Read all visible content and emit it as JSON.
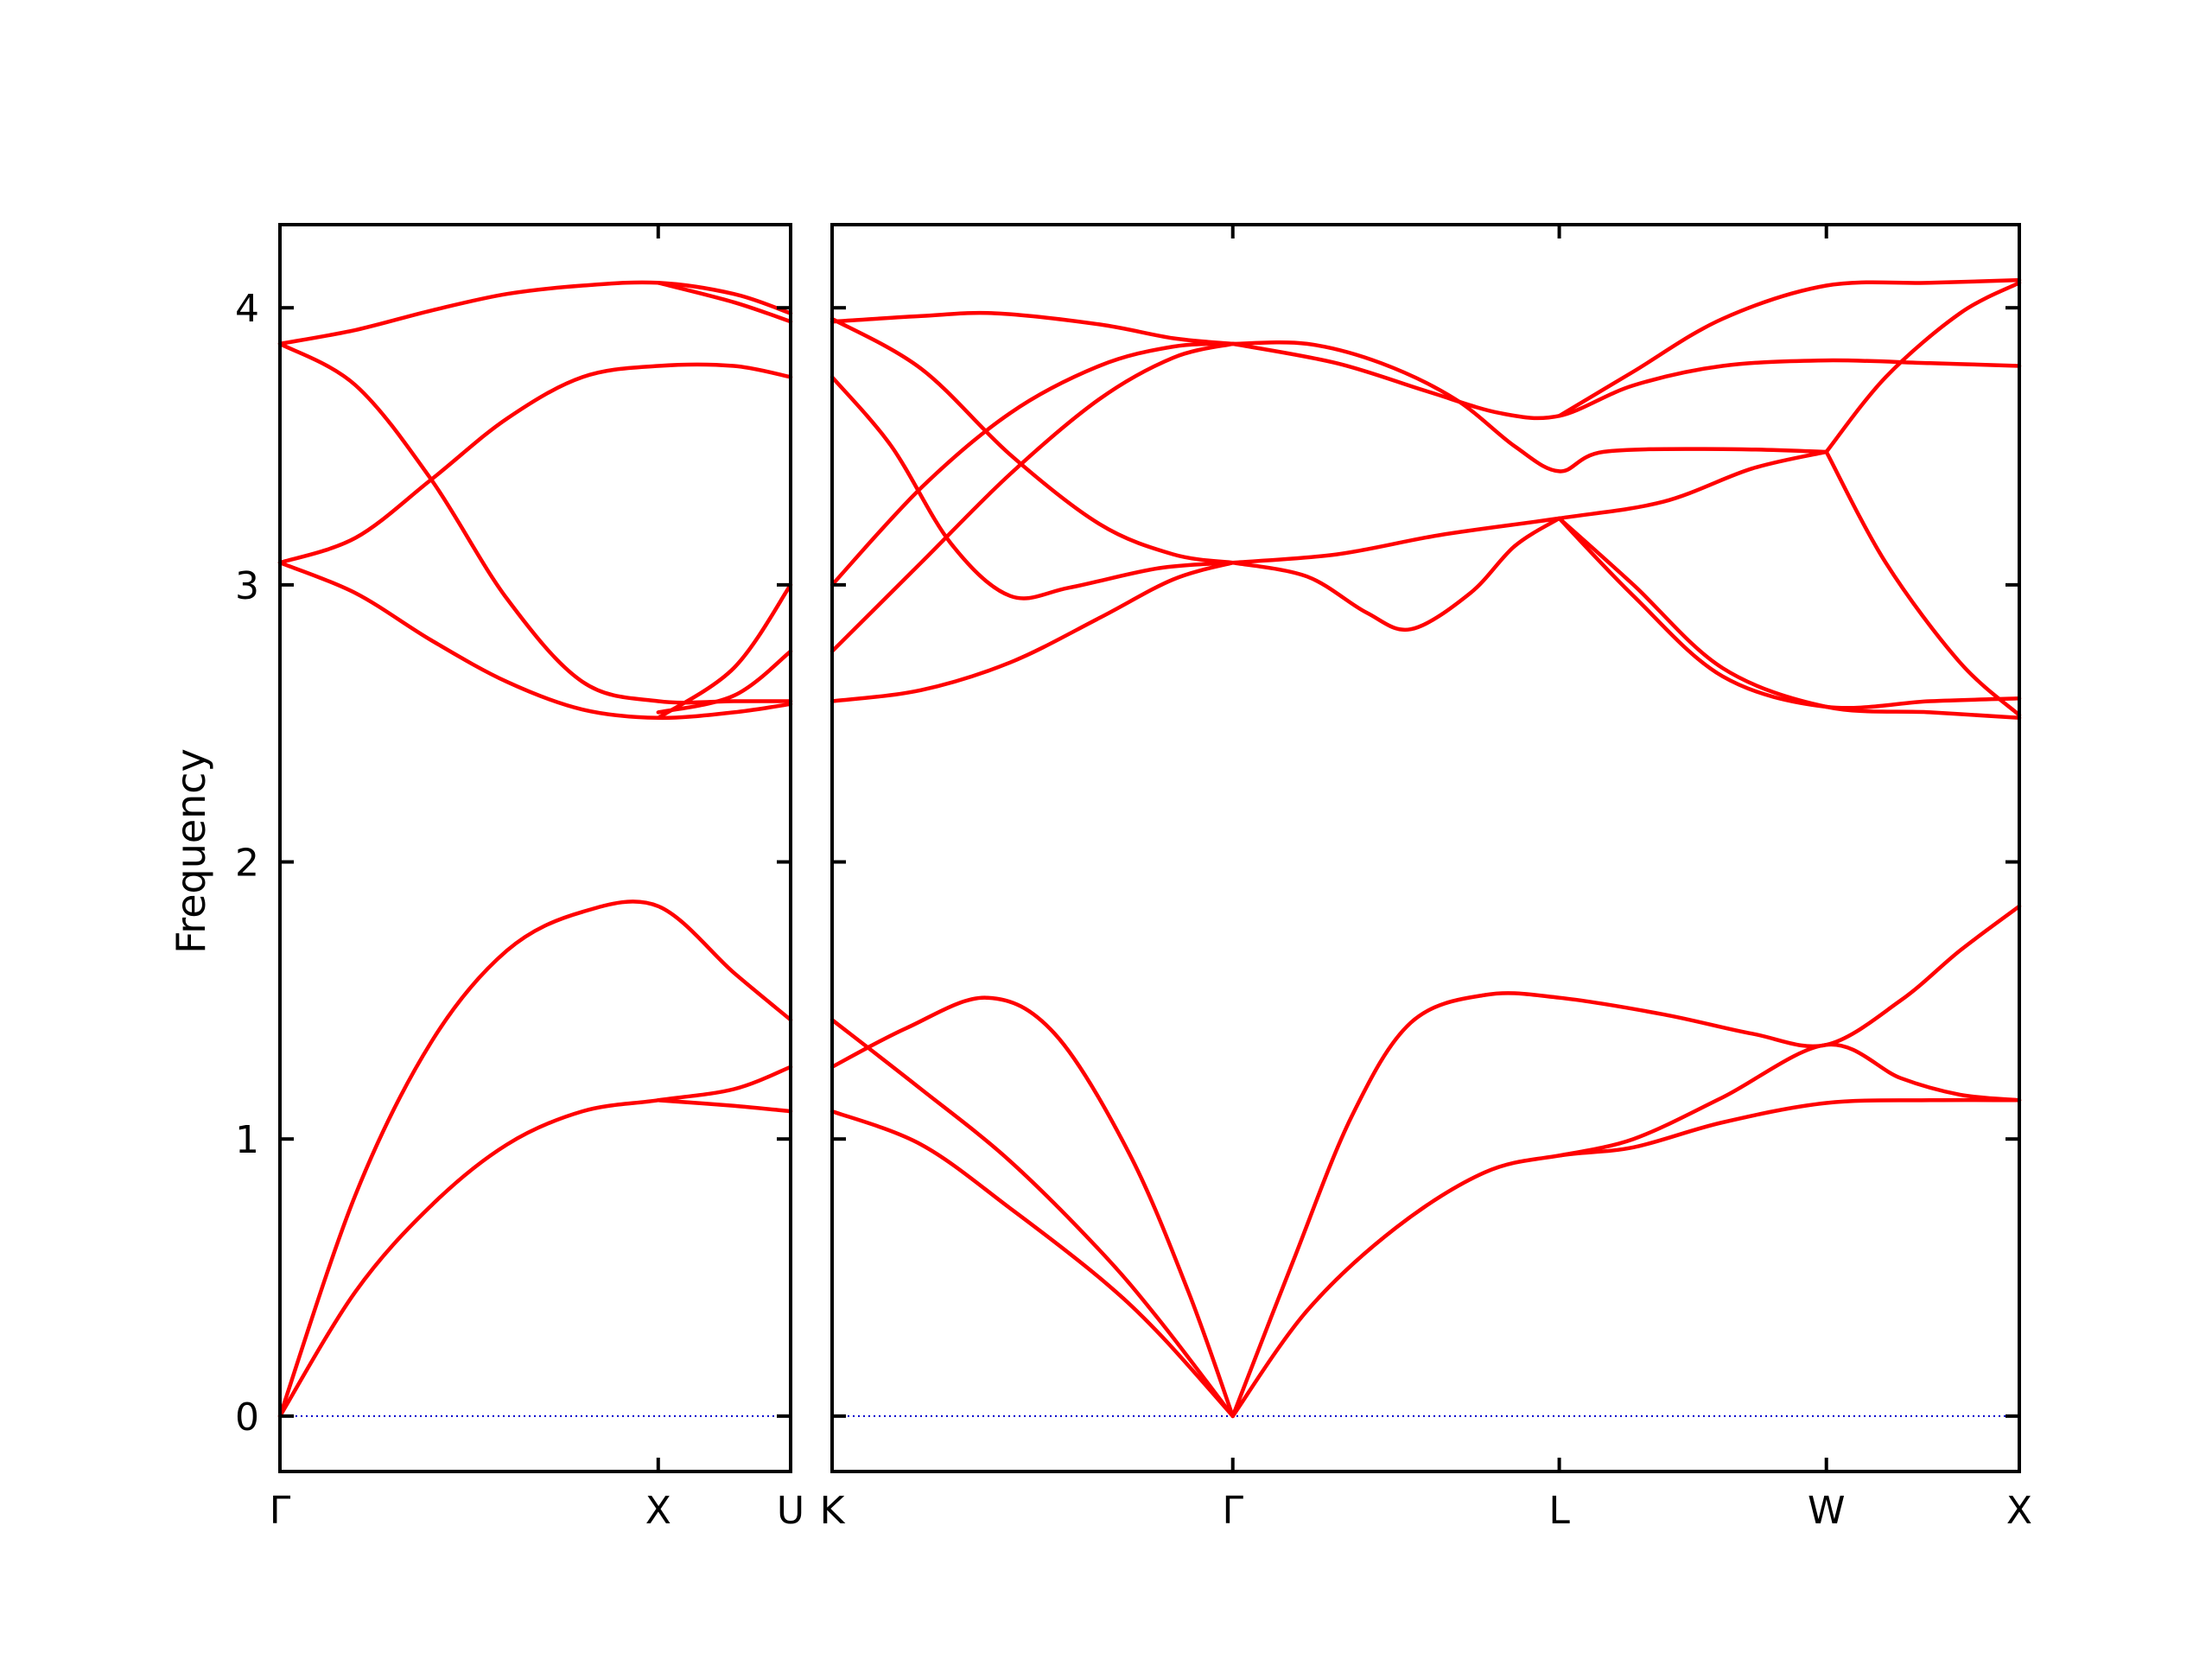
{
  "chart_data": {
    "type": "line",
    "title": "",
    "ylabel": "Frequency",
    "xlabel": "",
    "ylim": [
      -0.2,
      4.3
    ],
    "yticks": [
      0,
      1,
      2,
      3,
      4
    ],
    "colors": {
      "band": "#ff0000",
      "zero_line": "#0000cc",
      "axes": "#000000"
    },
    "panels": [
      {
        "name": "Γ–X–U",
        "xlim": [
          0,
          1.35
        ],
        "ticks": [
          {
            "x": 0,
            "label": "Γ"
          },
          {
            "x": 1.0,
            "label": "X"
          },
          {
            "x": 1.35,
            "label": "U"
          }
        ],
        "zero_line": true,
        "series": [
          {
            "values": [
              [
                0,
                0
              ],
              [
                0.2,
                0.45
              ],
              [
                0.4,
                0.76
              ],
              [
                0.6,
                0.98
              ],
              [
                0.8,
                1.1
              ],
              [
                1.0,
                1.14
              ],
              [
                1.2,
                1.18
              ],
              [
                1.35,
                1.26
              ]
            ]
          },
          {
            "values": [
              [
                0,
                0
              ],
              [
                0.2,
                0.8
              ],
              [
                0.4,
                1.35
              ],
              [
                0.6,
                1.68
              ],
              [
                0.8,
                1.82
              ],
              [
                1.0,
                1.84
              ],
              [
                1.2,
                1.6
              ],
              [
                1.35,
                1.43
              ]
            ]
          },
          {
            "values": [
              [
                0,
                1.14
              ],
              [
                0,
                1.14
              ]
            ],
            "skip": true
          },
          {
            "values": [
              [
                1.0,
                1.14
              ],
              [
                1.2,
                1.12
              ],
              [
                1.35,
                1.1
              ]
            ]
          },
          {
            "values": [
              [
                0,
                3.08
              ],
              [
                0.2,
                2.97
              ],
              [
                0.4,
                2.8
              ],
              [
                0.6,
                2.65
              ],
              [
                0.8,
                2.55
              ],
              [
                1.0,
                2.52
              ],
              [
                1.2,
                2.54
              ],
              [
                1.35,
                2.57
              ]
            ]
          },
          {
            "values": [
              [
                0,
                3.08
              ],
              [
                0.2,
                3.17
              ],
              [
                0.4,
                3.38
              ],
              [
                0.6,
                3.6
              ],
              [
                0.8,
                3.75
              ],
              [
                1.0,
                3.79
              ],
              [
                1.2,
                3.79
              ],
              [
                1.35,
                3.75
              ]
            ]
          },
          {
            "values": [
              [
                0,
                3.87
              ],
              [
                0.2,
                3.72
              ],
              [
                0.4,
                3.38
              ],
              [
                0.6,
                2.95
              ],
              [
                0.8,
                2.65
              ],
              [
                1.0,
                2.58
              ],
              [
                1.2,
                2.58
              ],
              [
                1.35,
                2.58
              ]
            ]
          },
          {
            "values": [
              [
                0,
                3.87
              ],
              [
                0.2,
                3.92
              ],
              [
                0.4,
                3.99
              ],
              [
                0.6,
                4.05
              ],
              [
                0.8,
                4.08
              ],
              [
                1.0,
                4.09
              ],
              [
                1.2,
                4.05
              ],
              [
                1.35,
                3.98
              ]
            ]
          },
          {
            "values": [
              [
                1.0,
                2.52
              ],
              [
                1.2,
                2.7
              ],
              [
                1.35,
                3.0
              ]
            ]
          },
          {
            "values": [
              [
                1.0,
                2.54
              ],
              [
                1.2,
                2.6
              ],
              [
                1.35,
                2.76
              ]
            ]
          },
          {
            "values": [
              [
                1.0,
                4.09
              ],
              [
                1.2,
                4.02
              ],
              [
                1.35,
                3.95
              ]
            ]
          }
        ]
      },
      {
        "name": "K–Γ–L–W–X",
        "xlim": [
          0,
          4.0
        ],
        "ticks": [
          {
            "x": 0,
            "label": "K"
          },
          {
            "x": 1.35,
            "label": "Γ"
          },
          {
            "x": 2.45,
            "label": "L"
          },
          {
            "x": 3.35,
            "label": "W"
          },
          {
            "x": 4.0,
            "label": "X"
          }
        ],
        "zero_line": true,
        "series": [
          {
            "values": [
              [
                0,
                1.1
              ],
              [
                0.3,
                0.98
              ],
              [
                0.6,
                0.75
              ],
              [
                0.9,
                0.5
              ],
              [
                1.1,
                0.3
              ],
              [
                1.35,
                0
              ]
            ]
          },
          {
            "values": [
              [
                0,
                1.43
              ],
              [
                0.3,
                1.18
              ],
              [
                0.6,
                0.92
              ],
              [
                0.9,
                0.6
              ],
              [
                1.1,
                0.35
              ],
              [
                1.35,
                0
              ]
            ]
          },
          {
            "values": [
              [
                0,
                1.26
              ],
              [
                0.25,
                1.4
              ],
              [
                0.52,
                1.51
              ],
              [
                0.75,
                1.38
              ],
              [
                1.0,
                0.95
              ],
              [
                1.2,
                0.45
              ],
              [
                1.35,
                0
              ]
            ]
          },
          {
            "values": [
              [
                1.35,
                0
              ],
              [
                1.6,
                0.38
              ],
              [
                1.9,
                0.68
              ],
              [
                2.2,
                0.88
              ],
              [
                2.45,
                0.94
              ],
              [
                2.7,
                0.97
              ],
              [
                3.0,
                1.06
              ],
              [
                3.35,
                1.13
              ],
              [
                3.7,
                1.14
              ],
              [
                4.0,
                1.14
              ]
            ]
          },
          {
            "values": [
              [
                1.35,
                0
              ],
              [
                1.55,
                0.55
              ],
              [
                1.75,
                1.08
              ],
              [
                1.95,
                1.42
              ],
              [
                2.2,
                1.52
              ],
              [
                2.45,
                1.51
              ],
              [
                2.8,
                1.45
              ],
              [
                3.1,
                1.38
              ],
              [
                3.35,
                1.34
              ],
              [
                3.6,
                1.5
              ],
              [
                3.8,
                1.68
              ],
              [
                4.0,
                1.84
              ]
            ]
          },
          {
            "values": [
              [
                2.45,
                0.94
              ],
              [
                2.7,
                1.0
              ],
              [
                3.0,
                1.15
              ],
              [
                3.35,
                1.34
              ],
              [
                3.6,
                1.22
              ],
              [
                3.8,
                1.16
              ],
              [
                4.0,
                1.14
              ]
            ]
          },
          {
            "values": [
              [
                0,
                2.58
              ],
              [
                0.3,
                2.62
              ],
              [
                0.6,
                2.72
              ],
              [
                0.9,
                2.88
              ],
              [
                1.15,
                3.02
              ],
              [
                1.35,
                3.08
              ]
            ]
          },
          {
            "values": [
              [
                0,
                2.76
              ],
              [
                0.3,
                3.08
              ],
              [
                0.6,
                3.4
              ],
              [
                0.9,
                3.67
              ],
              [
                1.15,
                3.82
              ],
              [
                1.35,
                3.87
              ]
            ]
          },
          {
            "values": [
              [
                0,
                3.0
              ],
              [
                0.3,
                3.35
              ],
              [
                0.6,
                3.62
              ],
              [
                0.9,
                3.79
              ],
              [
                1.15,
                3.86
              ],
              [
                1.35,
                3.87
              ]
            ]
          },
          {
            "values": [
              [
                0,
                3.75
              ],
              [
                0.2,
                3.5
              ],
              [
                0.4,
                3.15
              ],
              [
                0.6,
                2.96
              ],
              [
                0.8,
                2.99
              ],
              [
                1.1,
                3.06
              ],
              [
                1.35,
                3.08
              ]
            ]
          },
          {
            "values": [
              [
                0,
                3.96
              ],
              [
                0.3,
                3.78
              ],
              [
                0.6,
                3.47
              ],
              [
                0.9,
                3.22
              ],
              [
                1.15,
                3.11
              ],
              [
                1.35,
                3.08
              ]
            ]
          },
          {
            "values": [
              [
                0,
                3.95
              ],
              [
                0.3,
                3.97
              ],
              [
                0.55,
                3.98
              ],
              [
                0.9,
                3.94
              ],
              [
                1.15,
                3.89
              ],
              [
                1.35,
                3.87
              ]
            ]
          },
          {
            "values": [
              [
                1.35,
                3.08
              ],
              [
                1.6,
                3.03
              ],
              [
                1.8,
                2.9
              ],
              [
                1.95,
                2.84
              ],
              [
                2.15,
                2.97
              ],
              [
                2.3,
                3.14
              ],
              [
                2.45,
                3.24
              ]
            ]
          },
          {
            "values": [
              [
                1.35,
                3.08
              ],
              [
                1.7,
                3.11
              ],
              [
                2.05,
                3.18
              ],
              [
                2.45,
                3.24
              ],
              [
                2.8,
                3.3
              ],
              [
                3.1,
                3.42
              ],
              [
                3.35,
                3.48
              ]
            ]
          },
          {
            "values": [
              [
                1.35,
                3.87
              ],
              [
                1.6,
                3.87
              ],
              [
                1.85,
                3.8
              ],
              [
                2.1,
                3.67
              ],
              [
                2.3,
                3.5
              ],
              [
                2.45,
                3.41
              ],
              [
                2.6,
                3.48
              ],
              [
                3.0,
                3.49
              ],
              [
                3.35,
                3.48
              ]
            ]
          },
          {
            "values": [
              [
                1.35,
                3.87
              ],
              [
                1.7,
                3.8
              ],
              [
                2.0,
                3.7
              ],
              [
                2.25,
                3.62
              ],
              [
                2.45,
                3.61
              ],
              [
                2.7,
                3.72
              ],
              [
                3.0,
                3.79
              ],
              [
                3.35,
                3.81
              ],
              [
                3.7,
                3.8
              ],
              [
                4.0,
                3.79
              ]
            ]
          },
          {
            "values": [
              [
                2.45,
                3.61
              ],
              [
                2.7,
                3.77
              ],
              [
                3.0,
                3.96
              ],
              [
                3.35,
                4.08
              ],
              [
                3.7,
                4.09
              ],
              [
                4.0,
                4.1
              ]
            ]
          },
          {
            "values": [
              [
                2.45,
                3.24
              ],
              [
                2.7,
                2.96
              ],
              [
                3.0,
                2.67
              ],
              [
                3.35,
                2.56
              ],
              [
                3.7,
                2.58
              ],
              [
                4.0,
                2.59
              ]
            ]
          },
          {
            "values": [
              [
                2.45,
                3.24
              ],
              [
                2.7,
                3.0
              ],
              [
                3.0,
                2.7
              ],
              [
                3.35,
                2.56
              ],
              [
                3.7,
                2.54
              ],
              [
                4.0,
                2.52
              ]
            ]
          },
          {
            "values": [
              [
                3.35,
                3.48
              ],
              [
                3.55,
                3.08
              ],
              [
                3.8,
                2.72
              ],
              [
                4.0,
                2.53
              ]
            ]
          },
          {
            "values": [
              [
                3.35,
                3.48
              ],
              [
                3.55,
                3.75
              ],
              [
                3.8,
                3.98
              ],
              [
                4.0,
                4.09
              ]
            ]
          }
        ]
      }
    ]
  }
}
